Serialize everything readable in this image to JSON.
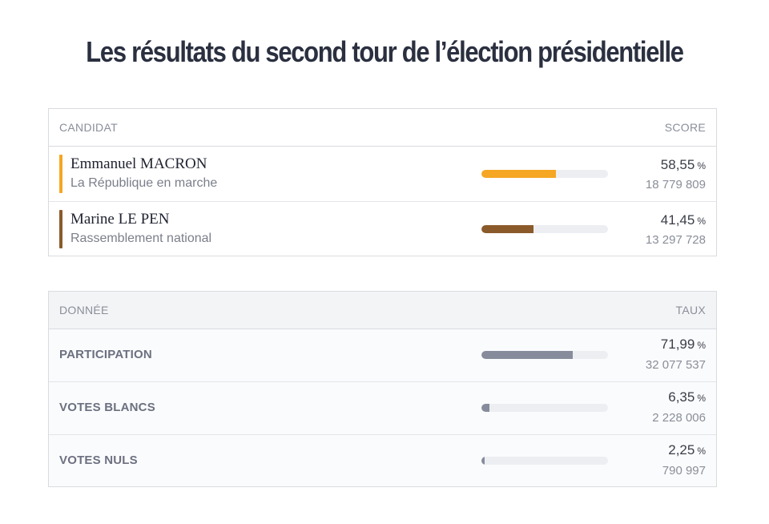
{
  "title": "Les résultats du second tour de l’élection présidentielle",
  "candidates_table": {
    "header_left": "CANDIDAT",
    "header_right": "SCORE",
    "rows": [
      {
        "name": "Emmanuel MACRON",
        "party": "La République en marche",
        "percent": "58,55",
        "unit": "%",
        "votes": "18 779 809",
        "share": 0.5855,
        "color": "#f5a623"
      },
      {
        "name": "Marine LE PEN",
        "party": "Rassemblement national",
        "percent": "41,45",
        "unit": "%",
        "votes": "13 297 728",
        "share": 0.4145,
        "color": "#8b5a2b"
      }
    ]
  },
  "data_table": {
    "header_left": "DONNÉE",
    "header_right": "TAUX",
    "rows": [
      {
        "label": "PARTICIPATION",
        "percent": "71,99",
        "unit": "%",
        "count": "32 077 537",
        "share": 0.7199,
        "color": "#878c9c"
      },
      {
        "label": "VOTES BLANCS",
        "percent": "6,35",
        "unit": "%",
        "count": "2 228 006",
        "share": 0.0635,
        "color": "#878c9c"
      },
      {
        "label": "VOTES NULS",
        "percent": "2,25",
        "unit": "%",
        "count": "790 997",
        "share": 0.0225,
        "color": "#878c9c"
      }
    ]
  }
}
